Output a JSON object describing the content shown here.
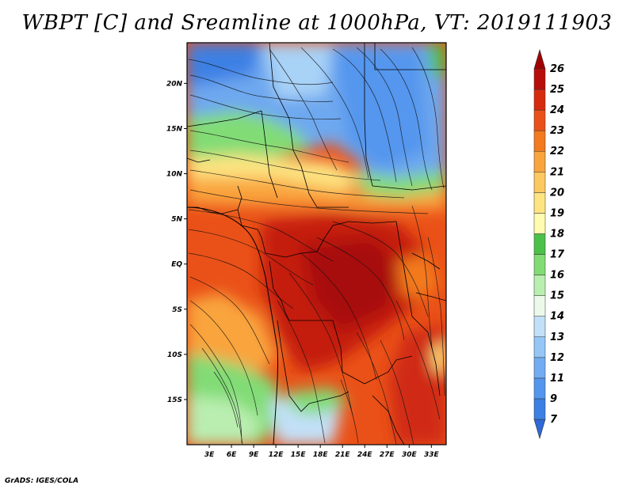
{
  "title": "WBPT [C] and Sreamline at 1000hPa, VT: 2019111903",
  "credit": "GrADS: IGES/COLA",
  "map": {
    "lon_range": [
      0,
      35
    ],
    "lat_range": [
      -20,
      24.5
    ],
    "lat_ticks": [
      {
        "value": 20,
        "label": "20N"
      },
      {
        "value": 15,
        "label": "15N"
      },
      {
        "value": 10,
        "label": "10N"
      },
      {
        "value": 5,
        "label": "5N"
      },
      {
        "value": 0,
        "label": "EQ"
      },
      {
        "value": -5,
        "label": "5S"
      },
      {
        "value": -10,
        "label": "10S"
      },
      {
        "value": -15,
        "label": "15S"
      }
    ],
    "lon_ticks": [
      {
        "value": 3,
        "label": "3E"
      },
      {
        "value": 6,
        "label": "6E"
      },
      {
        "value": 9,
        "label": "9E"
      },
      {
        "value": 12,
        "label": "12E"
      },
      {
        "value": 15,
        "label": "15E"
      },
      {
        "value": 18,
        "label": "18E"
      },
      {
        "value": 21,
        "label": "21E"
      },
      {
        "value": 24,
        "label": "24E"
      },
      {
        "value": 27,
        "label": "27E"
      },
      {
        "value": 30,
        "label": "30E"
      },
      {
        "value": 33,
        "label": "33E"
      }
    ]
  },
  "colorbar": {
    "labels": [
      "7",
      "9",
      "11",
      "12",
      "13",
      "14",
      "15",
      "16",
      "17",
      "18",
      "19",
      "20",
      "21",
      "22",
      "23",
      "24",
      "25",
      "26"
    ],
    "colors": [
      "#2f68d8",
      "#3d80e4",
      "#5496ee",
      "#72acf2",
      "#95c6f6",
      "#c2e0f8",
      "#ebf8ea",
      "#b9eeb0",
      "#82dc76",
      "#4cc14a",
      "#fffbb0",
      "#fde481",
      "#fcc861",
      "#f9a43c",
      "#f37a1f",
      "#ea5118",
      "#d72b10",
      "#b80e0a",
      "#a00000"
    ]
  }
}
